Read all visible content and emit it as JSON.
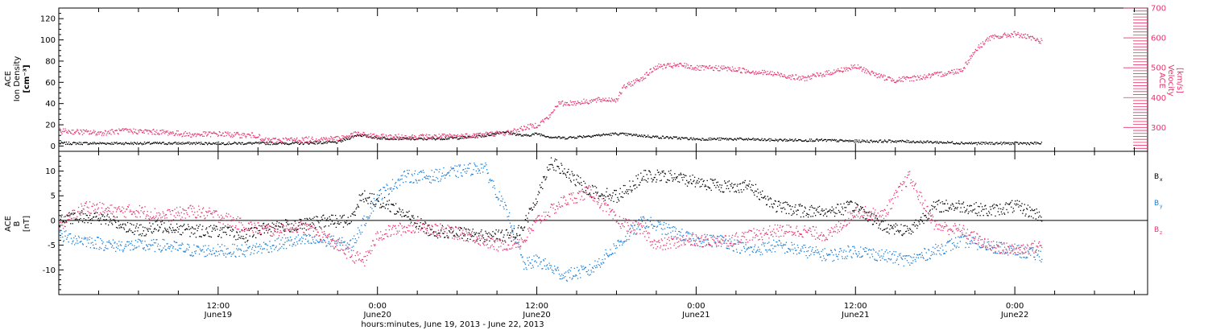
{
  "xlabel": "hours:minutes, June 19, 2013 - June 22, 2013",
  "xticks": [
    {
      "time": "12:00",
      "day": "June19",
      "h": 12
    },
    {
      "time": "0:00",
      "day": "June20",
      "h": 24
    },
    {
      "time": "12:00",
      "day": "June20",
      "h": 36
    },
    {
      "time": "0:00",
      "day": "June21",
      "h": 48
    },
    {
      "time": "12:00",
      "day": "June21",
      "h": 60
    },
    {
      "time": "0:00",
      "day": "June22",
      "h": 72
    }
  ],
  "xlim_hours": [
    0,
    82
  ],
  "colors": {
    "density": "#000000",
    "velocity": "#e8356d",
    "bx": "#000000",
    "by": "#1f7fd6",
    "bz": "#e8356d"
  },
  "chart_data": [
    {
      "type": "scatter",
      "panel": "top",
      "left_axis": {
        "label_lines": [
          "ACE",
          "Ion Density",
          "[cm⁻³]"
        ],
        "ylim": [
          -5,
          130
        ],
        "ticks": [
          0,
          20,
          40,
          60,
          80,
          100,
          120
        ]
      },
      "right_axis": {
        "label_lines": [
          "ACE",
          "Velocity",
          "[km/s]"
        ],
        "ylim": [
          220,
          700
        ],
        "ticks": [
          300,
          400,
          500,
          600,
          700
        ]
      },
      "series": [
        {
          "key": "density",
          "axis": "left",
          "x_hours": [
            0,
            3,
            6,
            9,
            12,
            15,
            18,
            21,
            22.5,
            24,
            27,
            30,
            32,
            33.5,
            35,
            36,
            37,
            38,
            40,
            42,
            45,
            48,
            51,
            54,
            57,
            60,
            63,
            66,
            69,
            72,
            74
          ],
          "y": [
            3,
            3,
            3,
            3,
            3,
            3,
            3,
            4,
            11,
            8,
            7,
            8,
            10,
            14,
            10,
            12,
            9,
            8,
            10,
            12,
            9,
            7,
            7,
            6,
            6,
            5,
            5,
            4,
            3,
            3,
            3
          ]
        },
        {
          "key": "velocity",
          "axis": "right",
          "x_hours": [
            0,
            3,
            5,
            8,
            10,
            12,
            14,
            15,
            15.2,
            18,
            21,
            22.5,
            24,
            27,
            30,
            32,
            34,
            35,
            36,
            37,
            37.5,
            39,
            41,
            42,
            42.5,
            44,
            45,
            47,
            48,
            50,
            52,
            54,
            56,
            58,
            60,
            62,
            63,
            65,
            67,
            68,
            69,
            70,
            72,
            74
          ],
          "y": [
            290,
            283,
            290,
            285,
            277,
            280,
            275,
            275,
            258,
            260,
            265,
            280,
            270,
            270,
            272,
            278,
            285,
            300,
            310,
            340,
            380,
            385,
            395,
            395,
            435,
            470,
            505,
            510,
            500,
            500,
            490,
            480,
            465,
            485,
            505,
            470,
            460,
            470,
            485,
            495,
            560,
            600,
            615,
            590
          ]
        }
      ]
    },
    {
      "type": "scatter",
      "panel": "bottom",
      "left_axis": {
        "label_lines": [
          "ACE",
          "B",
          "[nT]"
        ],
        "ylim": [
          -15,
          14
        ],
        "ticks": [
          -10,
          -5,
          0,
          5,
          10
        ]
      },
      "legend": [
        {
          "key": "bx",
          "label": "B",
          "sub": "x"
        },
        {
          "key": "by",
          "label": "B",
          "sub": "y"
        },
        {
          "key": "bz",
          "label": "B",
          "sub": "z"
        }
      ],
      "series": [
        {
          "key": "bx",
          "x_hours": [
            0,
            2,
            4,
            6,
            8,
            10,
            12,
            14,
            16,
            18,
            20,
            22,
            22.5,
            23,
            25,
            28,
            32,
            34,
            35,
            36,
            37,
            40,
            42,
            44,
            46,
            48,
            50,
            52,
            54,
            56,
            58,
            60,
            62,
            64,
            66,
            68,
            70,
            72,
            74
          ],
          "y": [
            0,
            1,
            0,
            -2,
            -1,
            -2,
            -2,
            -3,
            -1,
            -1,
            0,
            0,
            4,
            5,
            3,
            -2,
            -3,
            -3,
            -1,
            5,
            12,
            6,
            5,
            9,
            9,
            8,
            7,
            7,
            3,
            2,
            2,
            3,
            -1,
            -2,
            3,
            3,
            2,
            3,
            1
          ]
        },
        {
          "key": "by",
          "x_hours": [
            0,
            2,
            4,
            6,
            8,
            10,
            12,
            14,
            16,
            18,
            20,
            22,
            24,
            26,
            28,
            30,
            32,
            34,
            35,
            36,
            38,
            40,
            42,
            44,
            46,
            48,
            50,
            52,
            54,
            56,
            58,
            60,
            62,
            64,
            66,
            68,
            70,
            72,
            74
          ],
          "y": [
            -3,
            -4,
            -5,
            -5,
            -5,
            -6,
            -6,
            -6,
            -5,
            -4,
            -4,
            -5,
            5,
            9,
            9,
            10,
            11,
            0,
            -9,
            -8,
            -11,
            -10,
            -5,
            0,
            -2,
            -4,
            -4,
            -6,
            -5,
            -6,
            -7,
            -6,
            -7,
            -8,
            -6,
            -4,
            -5,
            -6,
            -7
          ]
        },
        {
          "key": "bz",
          "x_hours": [
            0,
            2,
            4,
            6,
            8,
            10,
            12,
            13,
            14,
            16,
            18,
            20,
            22,
            23,
            24,
            25,
            27,
            29,
            31,
            33,
            35,
            36,
            38,
            40,
            42,
            44,
            45,
            47,
            50,
            52,
            54,
            56,
            58,
            60,
            62,
            64,
            66,
            68,
            70,
            72,
            74
          ],
          "y": [
            -1,
            3,
            2,
            2,
            1,
            2,
            1,
            0,
            -1,
            -2,
            -1,
            -3,
            -7,
            -8,
            -3,
            -2,
            -1,
            -2,
            -3,
            -5,
            -4,
            0,
            4,
            6,
            0,
            -2,
            -5,
            -4,
            -4,
            -3,
            -2,
            -2,
            -3,
            2,
            1,
            9,
            -1,
            -2,
            -5,
            -6,
            -5
          ]
        }
      ]
    }
  ]
}
